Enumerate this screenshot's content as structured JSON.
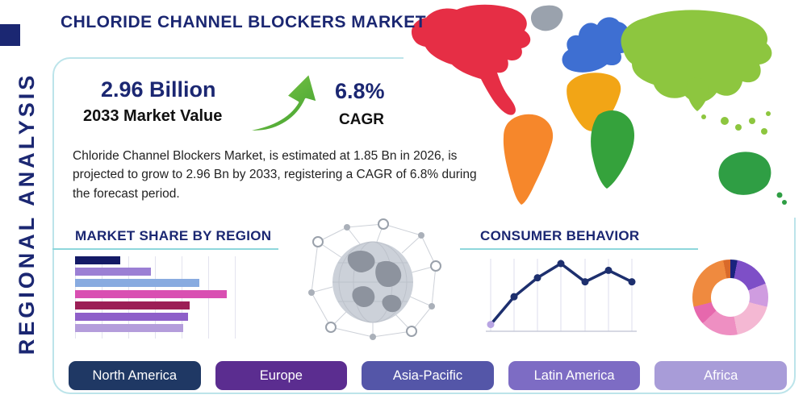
{
  "colors": {
    "navy": "#1b2772",
    "teal_line": "#8ed7dc",
    "border": "#bce4ea",
    "arrow_green_light": "#8ccf4a",
    "arrow_green_dark": "#3c9e30"
  },
  "header": {
    "title": "CHLORIDE CHANNEL BLOCKERS MARKET",
    "sidebar_label": "REGIONAL ANALYSIS"
  },
  "stats": {
    "market_value": "2.96 Billion",
    "market_value_label": "2033 Market Value",
    "cagr_value": "6.8%",
    "cagr_label": "CAGR",
    "description": "Chloride Channel Blockers Market, is estimated at 1.85 Bn in 2026, is projected to grow to 2.96 Bn by 2033, registering a CAGR of 6.8% during the forecast period."
  },
  "sections": {
    "market_share_title": "MARKET SHARE BY REGION",
    "consumer_behavior_title": "CONSUMER BEHAVIOR"
  },
  "chart_data": [
    {
      "type": "bar",
      "title": "Market Share by Region",
      "orientation": "horizontal",
      "categories": [
        "",
        "",
        "",
        "",
        "",
        "",
        ""
      ],
      "values": [
        28,
        47,
        77,
        94,
        71,
        70,
        67
      ],
      "value_unit": "relative bar length, axis unlabeled (estimated % of plot width)",
      "colors": [
        "#141a66",
        "#9b7fd4",
        "#88abe0",
        "#d94fb2",
        "#9c1f56",
        "#8e5fc9",
        "#b49ddb"
      ],
      "grid": "vertical gridlines, no tick labels"
    },
    {
      "type": "line",
      "title": "Consumer Behavior",
      "x": [
        1,
        2,
        3,
        4,
        5,
        6,
        7
      ],
      "values": [
        10,
        51,
        79,
        100,
        73,
        90,
        73
      ],
      "value_unit": "relative height, axis unlabeled (estimated)",
      "line_color": "#1d2f6e",
      "first_marker_color": "#b8a5e3",
      "grid": "vertical gridlines with baseline, no tick labels"
    },
    {
      "type": "pie",
      "title": "Regional split donut (unlabeled)",
      "segments": [
        {
          "color": "#1a237e",
          "value": 3
        },
        {
          "color": "#7e4fc7",
          "value": 16
        },
        {
          "color": "#cf9ce0",
          "value": 10
        },
        {
          "color": "#f4b8d3",
          "value": 18
        },
        {
          "color": "#ee8fc2",
          "value": 16
        },
        {
          "color": "#e668ad",
          "value": 8
        },
        {
          "color": "#ef8a3f",
          "value": 26
        },
        {
          "color": "#d96a2a",
          "value": 3
        }
      ],
      "value_unit": "percent (estimated, no labels shown)"
    }
  ],
  "map": {
    "regions": [
      {
        "id": "north-america",
        "color": "#e62e45"
      },
      {
        "id": "greenland",
        "color": "#9aa2ad"
      },
      {
        "id": "south-america",
        "color": "#f6872b"
      },
      {
        "id": "europe",
        "color": "#3e6fd2"
      },
      {
        "id": "africa-north",
        "color": "#f2a516"
      },
      {
        "id": "africa",
        "color": "#35a23c"
      },
      {
        "id": "asia",
        "color": "#8dc63f"
      },
      {
        "id": "australia",
        "color": "#2f9e44"
      },
      {
        "id": "new-zealand",
        "color": "#2f9e44"
      }
    ]
  },
  "region_buttons": [
    {
      "label": "North America",
      "color": "#1f3864"
    },
    {
      "label": "Europe",
      "color": "#5b2d90"
    },
    {
      "label": "Asia-Pacific",
      "color": "#5456a8"
    },
    {
      "label": "Latin America",
      "color": "#7d6cc4"
    },
    {
      "label": "Africa",
      "color": "#a89cd8"
    }
  ]
}
